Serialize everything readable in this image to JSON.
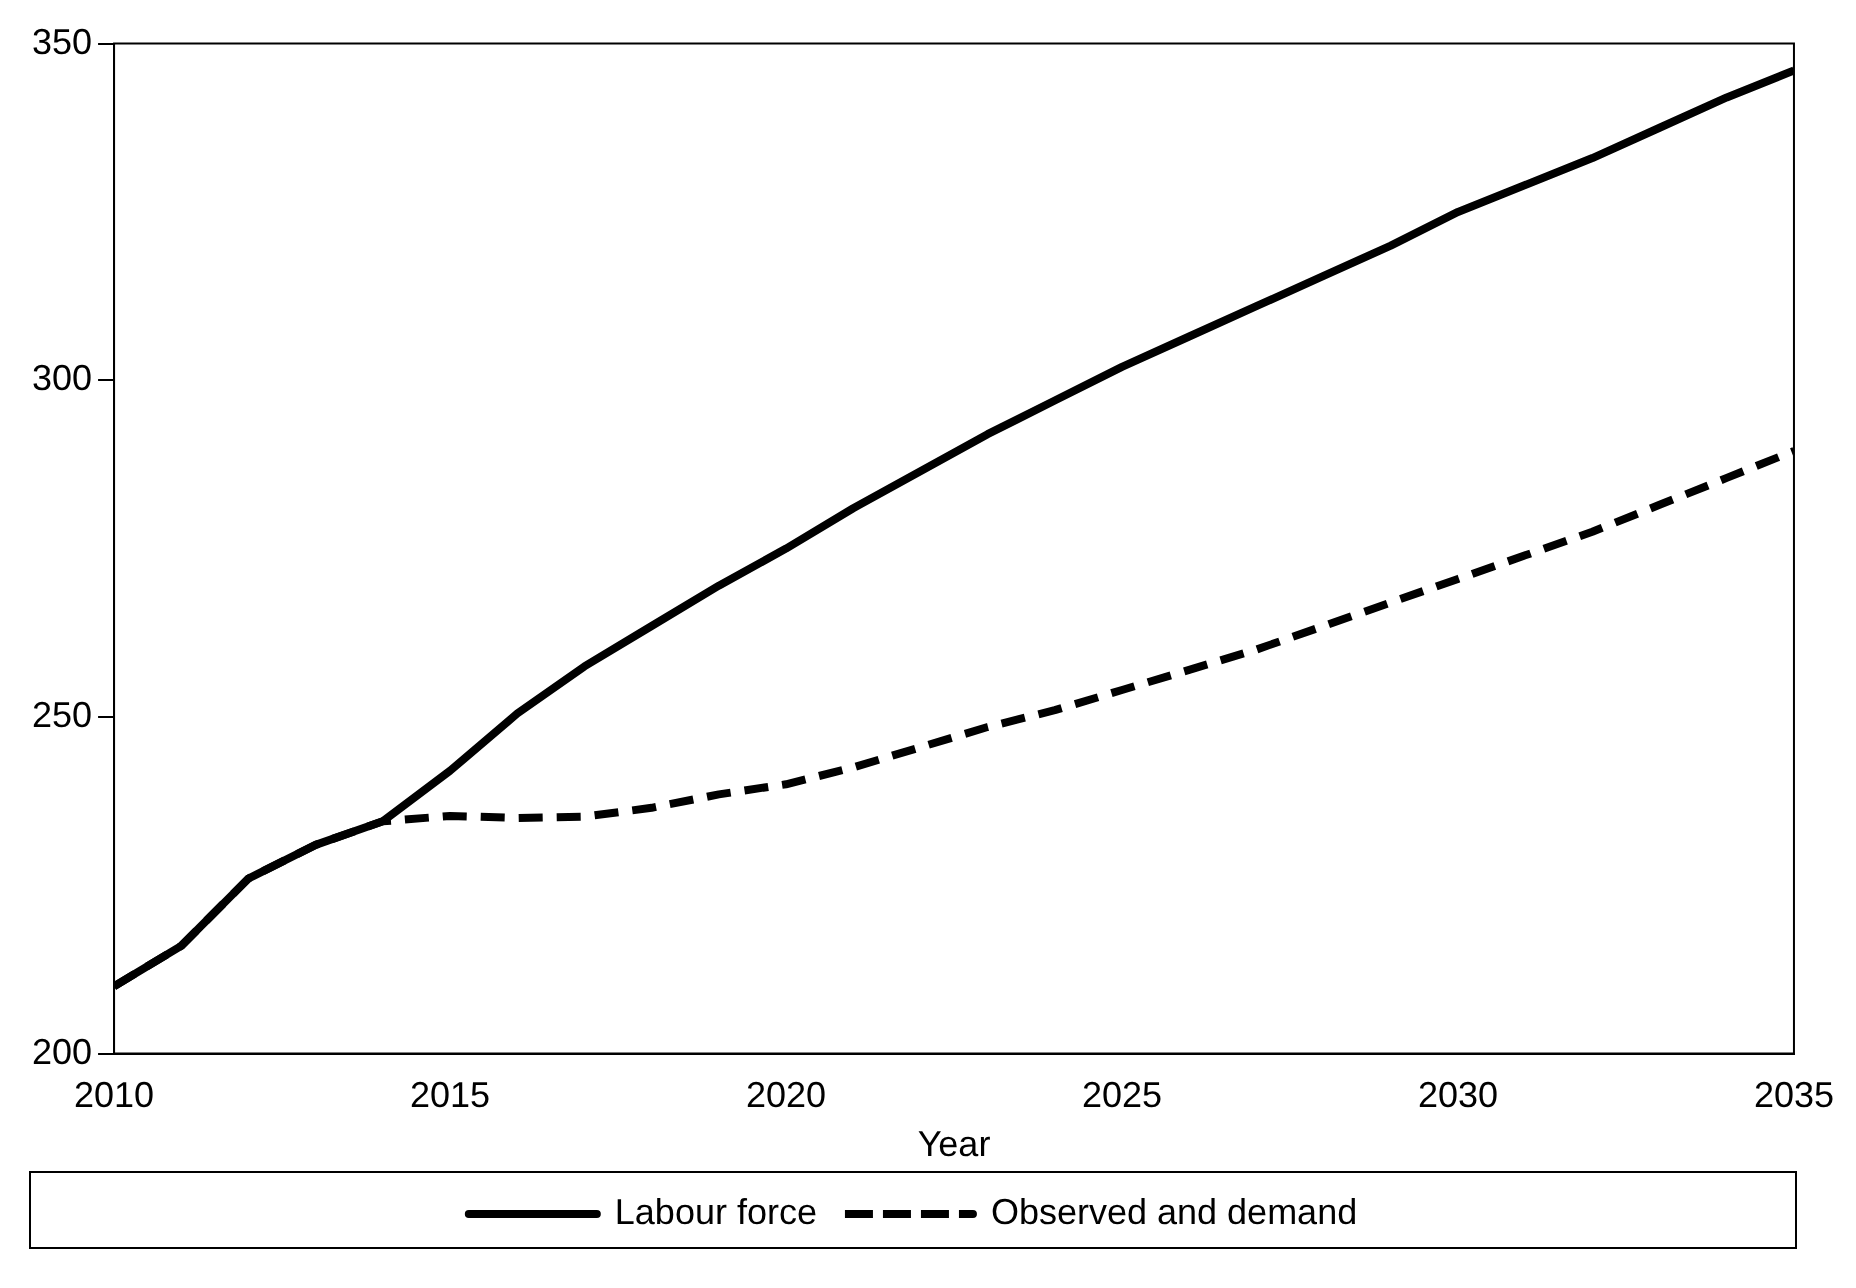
{
  "chart_data": {
    "type": "line",
    "xlabel": "Year",
    "x": [
      2010,
      2011,
      2012,
      2013,
      2014,
      2015,
      2016,
      2017,
      2018,
      2019,
      2020,
      2021,
      2022,
      2023,
      2024,
      2025,
      2026,
      2027,
      2028,
      2029,
      2030,
      2031,
      2032,
      2033,
      2034,
      2035
    ],
    "series": [
      {
        "name": "Labour force",
        "color": "#000000",
        "line_style": "solid",
        "values": [
          210,
          216,
          226,
          231,
          234.5,
          242,
          250.5,
          257.5,
          263.5,
          269.5,
          275,
          281,
          286.5,
          292,
          297,
          302,
          306.5,
          311,
          315.5,
          320,
          325,
          329,
          333,
          337.5,
          342,
          346
        ]
      },
      {
        "name": "Observed and demand",
        "color": "#000000",
        "line_style": "dashed",
        "values": [
          210,
          216,
          226,
          231,
          234.5,
          235.3,
          235,
          235.2,
          236.5,
          238.5,
          240,
          242.5,
          245.5,
          248.5,
          251,
          254,
          257,
          260,
          263.5,
          267,
          270.5,
          274,
          277.5,
          281.5,
          285.5,
          289.5
        ]
      }
    ],
    "xlim": [
      2010,
      2035
    ],
    "xticks": [
      2010,
      2015,
      2020,
      2025,
      2030,
      2035
    ],
    "ylim": [
      200,
      350
    ],
    "yticks": [
      200,
      250,
      300,
      350
    ],
    "grid": false,
    "legend": "bottom",
    "marker": "none"
  }
}
